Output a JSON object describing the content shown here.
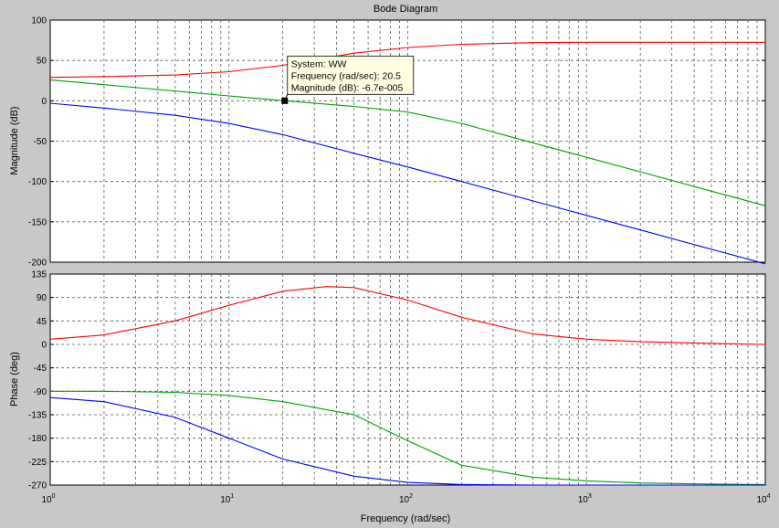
{
  "chart_data": {
    "type": "line",
    "title": "Bode Diagram",
    "xlabel": "Frequency  (rad/sec)",
    "xscale": "log",
    "xlim": [
      1,
      10000
    ],
    "x_tick_labels": [
      {
        "base": "10",
        "exp": "0",
        "value": 1
      },
      {
        "base": "10",
        "exp": "1",
        "value": 10
      },
      {
        "base": "10",
        "exp": "2",
        "value": 100
      },
      {
        "base": "10",
        "exp": "3",
        "value": 1000
      },
      {
        "base": "10",
        "exp": "4",
        "value": 10000
      }
    ],
    "grid": true,
    "colors": {
      "series_red": "#ff0000",
      "series_green": "#00a000",
      "series_blue": "#0000ff",
      "background": "#c8c8c8"
    },
    "magnitude": {
      "ylabel": "Magnitude (dB)",
      "ylim": [
        -200,
        100
      ],
      "yticks": [
        -200,
        -150,
        -100,
        -50,
        0,
        50,
        100
      ],
      "series": [
        {
          "color": "#ff0000",
          "x": [
            1,
            2,
            5,
            10,
            20,
            50,
            100,
            200,
            500,
            1000,
            2000,
            5000,
            10000
          ],
          "y": [
            29,
            30,
            32,
            36,
            44,
            59,
            66,
            70,
            72,
            72.5,
            72.5,
            72.5,
            72.5
          ]
        },
        {
          "color": "#00a000",
          "x": [
            1,
            2,
            5,
            10,
            20.5,
            50,
            100,
            200,
            500,
            1000,
            2000,
            5000,
            10000
          ],
          "y": [
            26,
            20,
            12,
            6,
            0,
            -7,
            -14,
            -28,
            -52,
            -70,
            -88,
            -112,
            -130
          ]
        },
        {
          "color": "#0000ff",
          "x": [
            1,
            2,
            5,
            10,
            20,
            50,
            100,
            200,
            500,
            1000,
            2000,
            5000,
            10000
          ],
          "y": [
            -3,
            -9,
            -18,
            -28,
            -42,
            -65,
            -82,
            -100,
            -124,
            -142,
            -160,
            -184,
            -202
          ]
        }
      ],
      "datatip": {
        "x": 20.5,
        "y": 0,
        "lines": [
          "System: WW",
          "Frequency (rad/sec): 20.5",
          "Magnitude (dB): -6.7e-005"
        ]
      }
    },
    "phase": {
      "ylabel": "Phase (deg)",
      "ylim": [
        -270,
        135
      ],
      "yticks": [
        -270,
        -225,
        -180,
        -135,
        -90,
        -45,
        0,
        45,
        90,
        135
      ],
      "series": [
        {
          "color": "#ff0000",
          "x": [
            1,
            2,
            5,
            10,
            20,
            35,
            50,
            100,
            200,
            500,
            1000,
            2000,
            5000,
            10000
          ],
          "y": [
            10,
            18,
            45,
            75,
            102,
            111,
            109,
            85,
            52,
            20,
            10,
            5,
            2,
            0
          ]
        },
        {
          "color": "#00a000",
          "x": [
            1,
            2,
            5,
            10,
            20,
            50,
            100,
            200,
            500,
            1000,
            2000,
            5000,
            10000
          ],
          "y": [
            -90,
            -90,
            -92,
            -98,
            -110,
            -135,
            -185,
            -232,
            -255,
            -262,
            -266,
            -268,
            -269
          ]
        },
        {
          "color": "#0000ff",
          "x": [
            1,
            2,
            5,
            10,
            20,
            50,
            100,
            200,
            500,
            1000,
            2000,
            5000,
            10000
          ],
          "y": [
            -102,
            -110,
            -140,
            -180,
            -220,
            -253,
            -265,
            -269,
            -270,
            -270,
            -270,
            -270,
            -270
          ]
        }
      ]
    }
  }
}
